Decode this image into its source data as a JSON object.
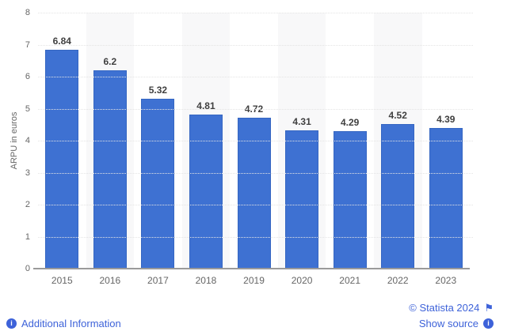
{
  "chart_data": {
    "type": "bar",
    "categories": [
      "2015",
      "2016",
      "2017",
      "2018",
      "2019",
      "2020",
      "2021",
      "2022",
      "2023"
    ],
    "values": [
      6.84,
      6.2,
      5.32,
      4.81,
      4.72,
      4.31,
      4.29,
      4.52,
      4.39
    ],
    "value_labels": [
      "6.84",
      "6.2",
      "5.32",
      "4.81",
      "4.72",
      "4.31",
      "4.29",
      "4.52",
      "4.39"
    ],
    "title": "",
    "xlabel": "",
    "ylabel": "ARPU in euros",
    "ylim": [
      0,
      8
    ],
    "yticks": [
      0,
      1,
      2,
      3,
      4,
      5,
      6,
      7,
      8
    ],
    "grid": "dotted horizontal gridlines",
    "legend": "none",
    "banded_columns": "alternating light-gray bands behind 2016, 2018, 2020, 2022"
  },
  "footer": {
    "additional_information": "Additional Information",
    "copyright": "© Statista 2024",
    "show_source": "Show source",
    "info_icon_glyph": "i",
    "flag_icon_glyph": "⚑"
  },
  "colors": {
    "bar": "#3e71d2",
    "bar_border": "#3566c2",
    "band": "#f8f8f9",
    "grid": "#e4e4e4",
    "axis_line": "#9a9a9a",
    "tick_text": "#666666",
    "value_label": "#404040",
    "link": "#3d62d9"
  }
}
